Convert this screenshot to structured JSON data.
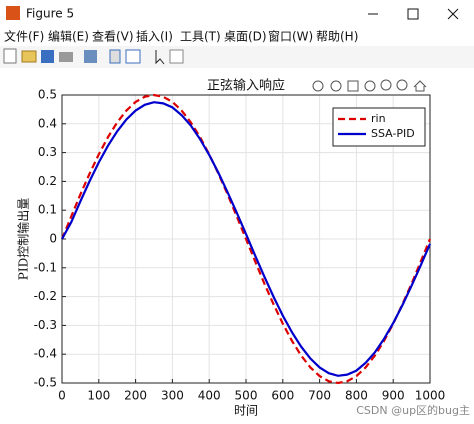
{
  "window": {
    "title": "Figure 5",
    "menu": [
      "文件(F)",
      "编辑(E)",
      "查看(V)",
      "插入(I)",
      "工具(T)",
      "桌面(D)",
      "窗口(W)",
      "帮助(H)"
    ],
    "watermark": "CSDN @up区的bug主"
  },
  "chart_data": {
    "type": "line",
    "title": "正弦输入响应",
    "xlabel": "时间",
    "ylabel": "PID控制输出量",
    "x": [
      0,
      25,
      50,
      75,
      100,
      125,
      150,
      175,
      200,
      225,
      250,
      275,
      300,
      325,
      350,
      375,
      400,
      425,
      450,
      475,
      500,
      525,
      550,
      575,
      600,
      625,
      650,
      675,
      700,
      725,
      750,
      775,
      800,
      825,
      850,
      875,
      900,
      925,
      950,
      975,
      1000
    ],
    "series": [
      {
        "name": "rin",
        "color": "#dd0000",
        "dashed": true,
        "values": [
          0,
          0.078,
          0.155,
          0.227,
          0.294,
          0.354,
          0.405,
          0.446,
          0.476,
          0.494,
          0.5,
          0.494,
          0.476,
          0.446,
          0.405,
          0.354,
          0.294,
          0.227,
          0.155,
          0.078,
          0,
          -0.078,
          -0.155,
          -0.227,
          -0.294,
          -0.354,
          -0.405,
          -0.446,
          -0.476,
          -0.494,
          -0.5,
          -0.494,
          -0.476,
          -0.446,
          -0.405,
          -0.354,
          -0.294,
          -0.227,
          -0.155,
          -0.078,
          0
        ]
      },
      {
        "name": "SSA-PID",
        "color": "#0000cc",
        "dashed": false,
        "values": [
          0,
          0.058,
          0.131,
          0.201,
          0.266,
          0.324,
          0.374,
          0.415,
          0.446,
          0.466,
          0.475,
          0.471,
          0.457,
          0.43,
          0.394,
          0.347,
          0.292,
          0.23,
          0.162,
          0.091,
          0.017,
          -0.058,
          -0.131,
          -0.201,
          -0.266,
          -0.324,
          -0.374,
          -0.415,
          -0.446,
          -0.466,
          -0.475,
          -0.471,
          -0.457,
          -0.43,
          -0.394,
          -0.347,
          -0.292,
          -0.23,
          -0.162,
          -0.091,
          -0.017
        ]
      }
    ],
    "xlim": [
      0,
      1000
    ],
    "xticks": [
      0,
      100,
      200,
      300,
      400,
      500,
      600,
      700,
      800,
      900,
      1000
    ],
    "ylim": [
      -0.5,
      0.5
    ],
    "yticks": [
      -0.5,
      -0.4,
      -0.3,
      -0.2,
      -0.1,
      0,
      0.1,
      0.2,
      0.3,
      0.4,
      0.5
    ],
    "grid": true,
    "legend": "upper right"
  }
}
